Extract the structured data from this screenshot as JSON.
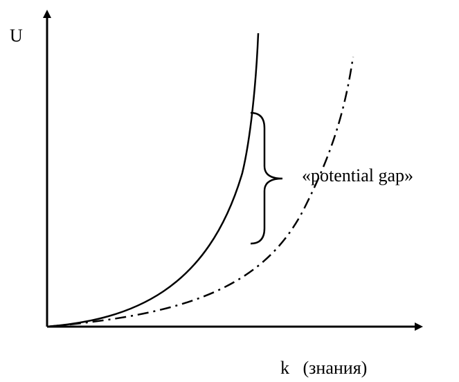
{
  "labels": {
    "y_axis": "U",
    "x_axis": "k (знания)",
    "gap": "«potential gap»"
  },
  "colors": {
    "stroke": "#000000",
    "background": "#ffffff"
  },
  "curves": [
    {
      "name": "solid-curve",
      "style": "solid"
    },
    {
      "name": "dash-dot-curve",
      "style": "dash-dot"
    }
  ]
}
